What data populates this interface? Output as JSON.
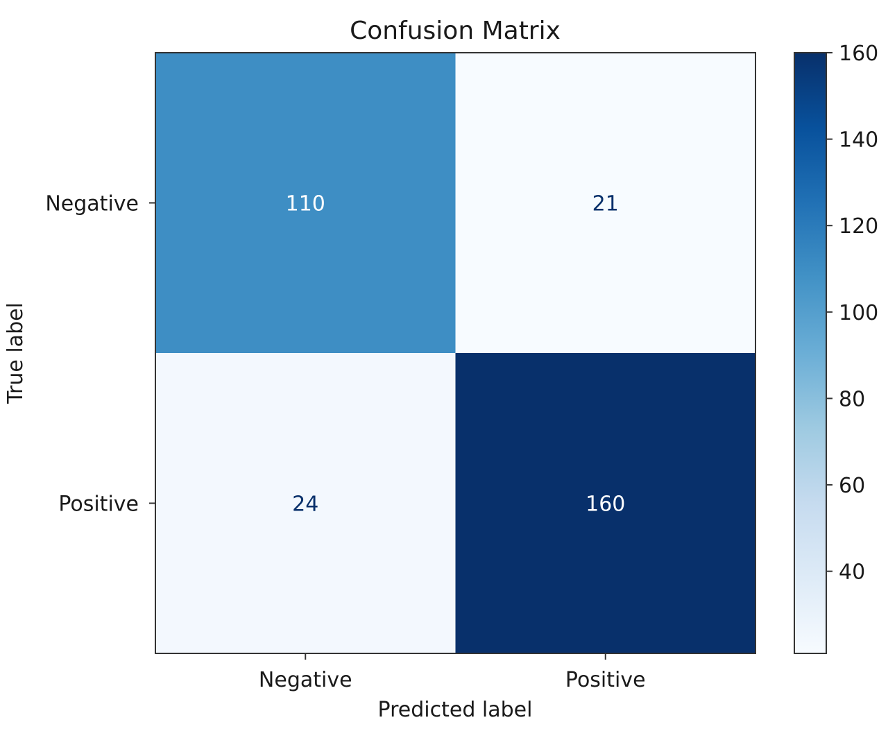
{
  "chart_data": {
    "type": "heatmap",
    "title": "Confusion Matrix",
    "xlabel": "Predicted label",
    "ylabel": "True label",
    "x_categories": [
      "Negative",
      "Positive"
    ],
    "y_categories": [
      "Negative",
      "Positive"
    ],
    "values": [
      [
        110,
        21
      ],
      [
        24,
        160
      ]
    ],
    "colormap": "Blues",
    "value_range": [
      21,
      160
    ],
    "colorbar": {
      "ticks": [
        40,
        60,
        80,
        100,
        120,
        140,
        160
      ]
    },
    "grid": false
  }
}
